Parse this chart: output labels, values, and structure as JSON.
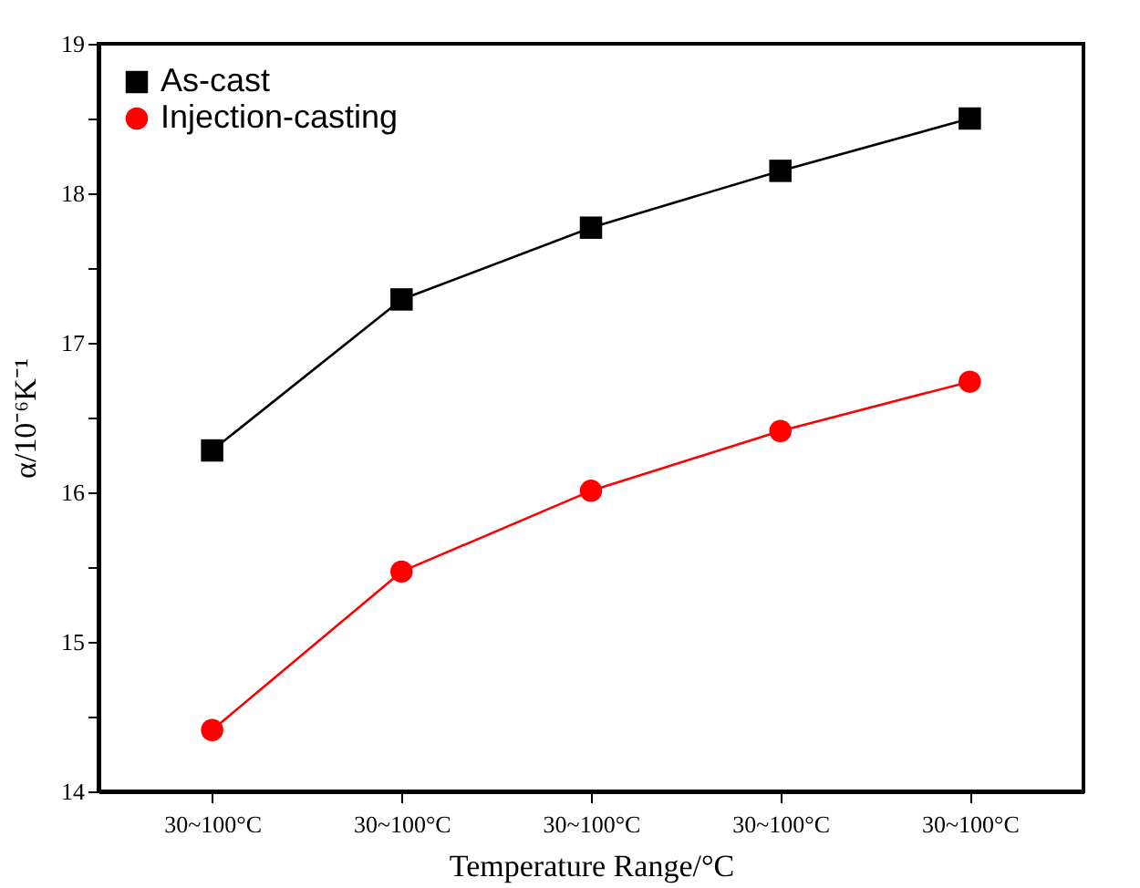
{
  "chart_data": {
    "type": "line",
    "xlabel": "Temperature Range/°C",
    "ylabel": "α/10⁻⁶K⁻¹",
    "categories": [
      "30~100°C",
      "30~100°C",
      "30~100°C",
      "30~100°C",
      "30~100°C"
    ],
    "series": [
      {
        "name": "As-cast",
        "color": "#000000",
        "marker": "square",
        "values": [
          16.28,
          17.29,
          17.77,
          18.15,
          18.5
        ]
      },
      {
        "name": "Injection-casting",
        "color": "#ff0000",
        "marker": "circle",
        "values": [
          14.41,
          15.47,
          16.01,
          16.41,
          16.74
        ]
      }
    ],
    "ylim": [
      14,
      19
    ],
    "yticks": [
      14,
      {
        "value": 14.5,
        "label": null
      },
      15,
      {
        "value": 15.5,
        "label": null
      },
      16,
      {
        "value": 16.5,
        "label": null
      },
      17,
      {
        "value": 17.5,
        "label": null
      },
      18,
      {
        "value": 18.5,
        "label": null
      },
      19
    ],
    "grid": false,
    "legend": "top left",
    "line_style": "solid"
  }
}
